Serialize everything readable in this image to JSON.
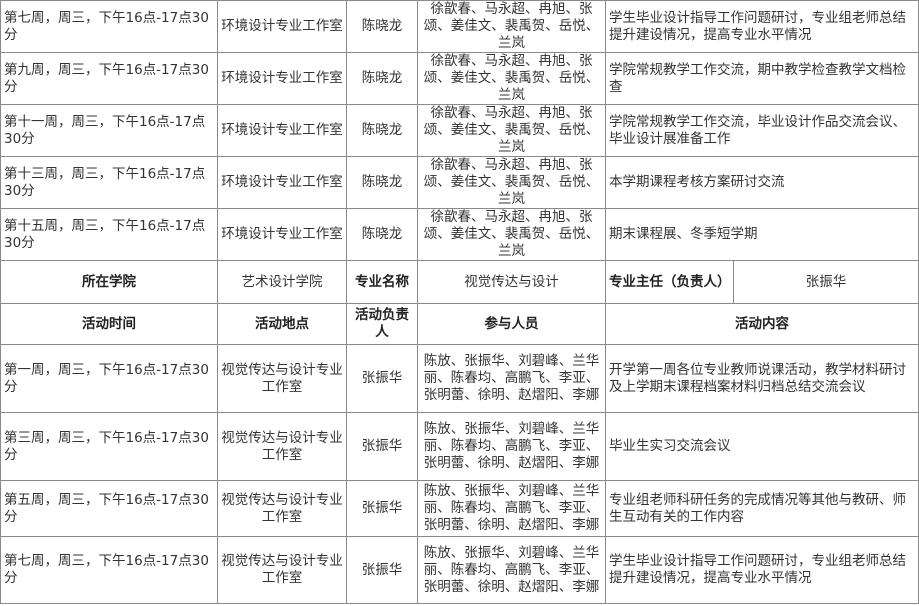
{
  "group1_rows": [
    {
      "time": "第七周，周三，下午16点-17点30分",
      "place": "环境设计专业工作室",
      "leader": "陈晓龙",
      "participants": "徐歆春、马永超、冉旭、张颂、姜佳文、裴禹贺、岳悦、兰岚",
      "content": "学生毕业设计指导工作问题研讨，专业组老师总结提升建设情况，提高专业水平情况"
    },
    {
      "time": "第九周，周三，下午16点-17点30分",
      "place": "环境设计专业工作室",
      "leader": "陈晓龙",
      "participants": "徐歆春、马永超、冉旭、张颂、姜佳文、裴禹贺、岳悦、兰岚",
      "content": "学院常规教学工作交流，期中教学检查教学文档检查"
    },
    {
      "time": "第十一周，周三，下午16点-17点30分",
      "place": "环境设计专业工作室",
      "leader": "陈晓龙",
      "participants": "徐歆春、马永超、冉旭、张颂、姜佳文、裴禹贺、岳悦、兰岚",
      "content": "学院常规教学工作交流，毕业设计作品交流会议、毕业设计展准备工作"
    },
    {
      "time": "第十三周，周三，下午16点-17点30分",
      "place": "环境设计专业工作室",
      "leader": "陈晓龙",
      "participants": "徐歆春、马永超、冉旭、张颂、姜佳文、裴禹贺、岳悦、兰岚",
      "content": "本学期课程考核方案研讨交流"
    },
    {
      "time": "第十五周，周三，下午16点-17点30分",
      "place": "环境设计专业工作室",
      "leader": "陈晓龙",
      "participants": "徐歆春、马永超、冉旭、张颂、姜佳文、裴禹贺、岳悦、兰岚",
      "content": "期末课程展、冬季短学期"
    }
  ],
  "info": {
    "college_label": "所在学院",
    "college": "艺术设计学院",
    "major_label": "专业名称",
    "major": "视觉传达与设计",
    "director_label": "专业主任（负责人）",
    "director": "张振华"
  },
  "headers": {
    "time": "活动时间",
    "place": "活动地点",
    "leader": "活动负责人",
    "participants": "参与人员",
    "content": "活动内容"
  },
  "group2_rows": [
    {
      "time": "第一周，周三，下午16点-17点30分",
      "place": "视觉传达与设计专业工作室",
      "leader": "张振华",
      "participants": "陈放、张振华、刘碧峰、兰华丽、陈春均、高鹏飞、李亚、张明蕾、徐明、赵熠阳、李娜",
      "content": "开学第一周各位专业教师说课活动，教学材料研讨及上学期末课程档案材料归档总结交流会议"
    },
    {
      "time": "第三周，周三，下午16点-17点30分",
      "place": "视觉传达与设计专业工作室",
      "leader": "张振华",
      "participants": "陈放、张振华、刘碧峰、兰华丽、陈春均、高鹏飞、李亚、张明蕾、徐明、赵熠阳、李娜",
      "content": "毕业生实习交流会议"
    },
    {
      "time": "第五周，周三，下午16点-17点30分",
      "place": "视觉传达与设计专业工作室",
      "leader": "张振华",
      "participants": "陈放、张振华、刘碧峰、兰华丽、陈春均、高鹏飞、李亚、张明蕾、徐明、赵熠阳、李娜",
      "content": "专业组老师科研任务的完成情况等其他与教研、师生互动有关的工作内容"
    },
    {
      "time": "第七周，周三，下午16点-17点30分",
      "place": "视觉传达与设计专业工作室",
      "leader": "张振华",
      "participants": "陈放、张振华、刘碧峰、兰华丽、陈春均、高鹏飞、李亚、张明蕾、徐明、赵熠阳、李娜",
      "content": "学生毕业设计指导工作问题研讨，专业组老师总结提升建设情况，提高专业水平情况"
    }
  ]
}
